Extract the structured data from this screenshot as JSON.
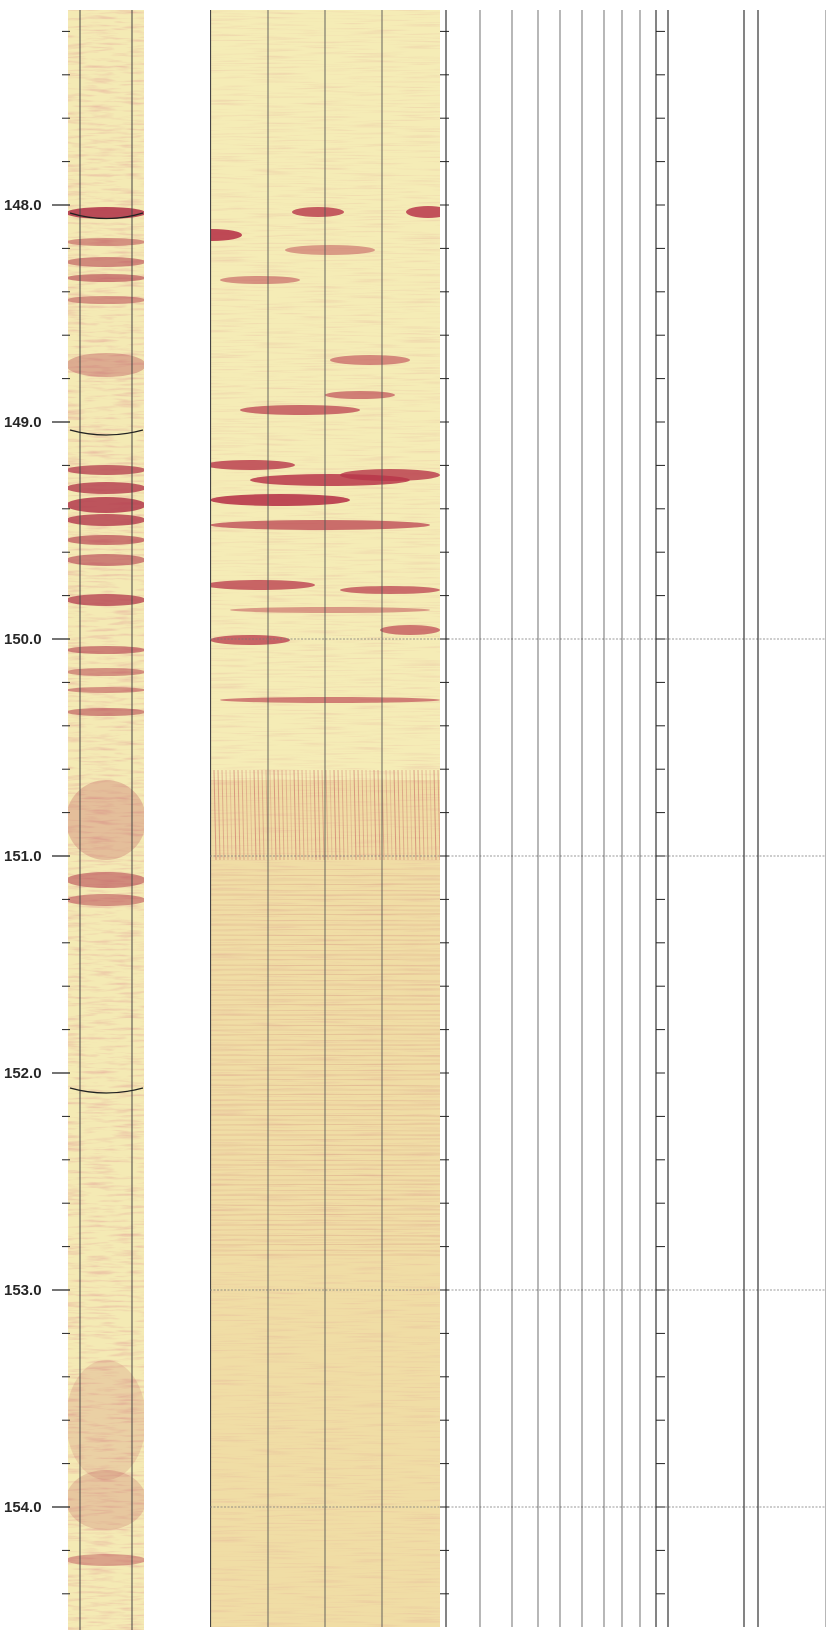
{
  "depth_log": {
    "depth_labels": [
      "148.0",
      "149.0",
      "150.0",
      "151.0",
      "152.0",
      "153.0",
      "154.0"
    ],
    "depth_values_m": [
      148.0,
      149.0,
      150.0,
      151.0,
      152.0,
      153.0,
      154.0
    ],
    "tracks": [
      "unrolled-core-image-track",
      "borehole-image-track",
      "empty-log-track-1",
      "empty-log-track-2"
    ],
    "colors": {
      "image_light": "#f7f0b8",
      "image_mid": "#e9c98a",
      "image_dark": "#b8374a",
      "grid_line": "#333333"
    }
  }
}
